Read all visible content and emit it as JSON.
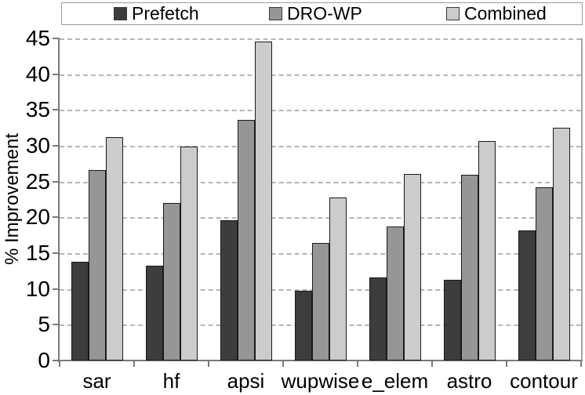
{
  "legend": {
    "items": [
      {
        "label": "Prefetch",
        "color": "#3d3d3d"
      },
      {
        "label": "DRO-WP",
        "color": "#969696"
      },
      {
        "label": "Combined",
        "color": "#cccccc"
      }
    ]
  },
  "y_axis": {
    "title": "% Improvement",
    "tick_labels": [
      "0",
      "5",
      "10",
      "15",
      "20",
      "25",
      "30",
      "35",
      "40",
      "45"
    ]
  },
  "chart_data": {
    "type": "bar",
    "title": "",
    "xlabel": "",
    "ylabel": "% Improvement",
    "categories": [
      "sar",
      "hf",
      "apsi",
      "wupwise",
      "e_elem",
      "astro",
      "contour"
    ],
    "series": [
      {
        "name": "Prefetch",
        "color": "#3d3d3d",
        "values": [
          13.8,
          13.3,
          19.6,
          9.7,
          11.6,
          11.3,
          18.2
        ]
      },
      {
        "name": "DRO-WP",
        "color": "#969696",
        "values": [
          26.6,
          22.0,
          33.6,
          16.4,
          18.7,
          26.0,
          24.2
        ]
      },
      {
        "name": "Combined",
        "color": "#cccccc",
        "values": [
          31.2,
          29.9,
          44.6,
          22.8,
          26.1,
          30.7,
          32.5
        ]
      }
    ],
    "ylim": [
      0,
      45
    ],
    "ytick_step": 5,
    "grid": true,
    "gridline_color": "#b6b6b6",
    "axis_color": "#7a7a7a",
    "legend_position": "top"
  }
}
